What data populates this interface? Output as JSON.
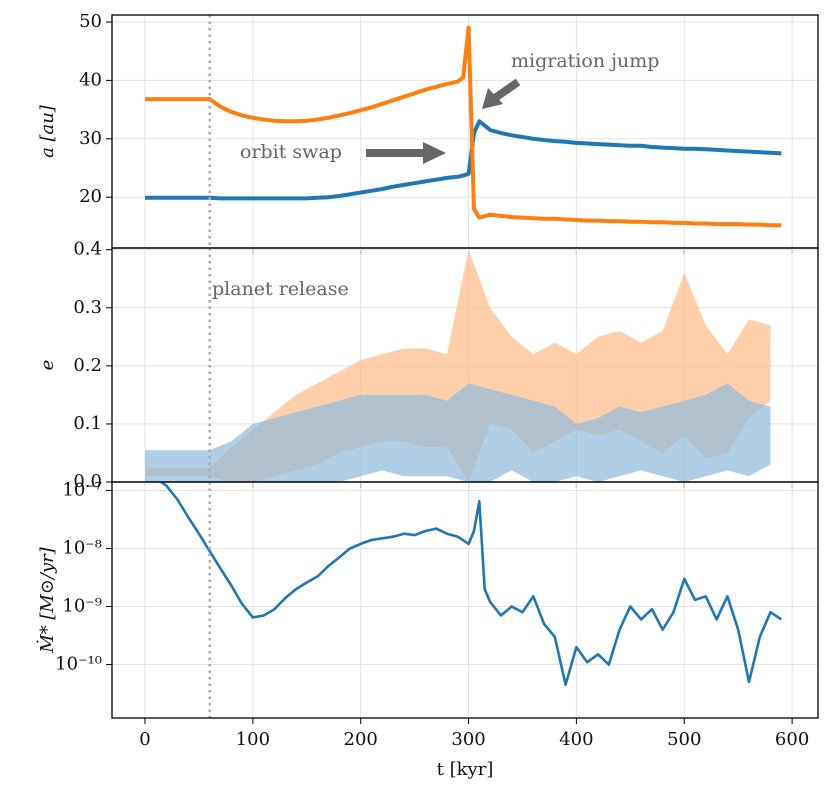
{
  "chart_data": [
    {
      "type": "line",
      "ylabel": "a [au]",
      "xlim": [
        -30.6,
        624
      ],
      "xticks": [
        0,
        100,
        200,
        300,
        400,
        500,
        600
      ],
      "ylim": [
        11.3,
        51.2
      ],
      "yticks": [
        20,
        30,
        40,
        50
      ],
      "grid": true,
      "vline": 60,
      "annotations": [
        "migration jump",
        "orbit swap"
      ],
      "x": [
        0,
        10,
        20,
        30,
        40,
        50,
        60,
        70,
        80,
        90,
        100,
        110,
        120,
        130,
        140,
        150,
        160,
        170,
        180,
        190,
        200,
        210,
        220,
        230,
        240,
        250,
        260,
        270,
        280,
        290,
        295,
        300,
        305,
        310,
        320,
        330,
        340,
        350,
        360,
        370,
        380,
        390,
        400,
        410,
        420,
        430,
        440,
        450,
        460,
        470,
        480,
        490,
        500,
        510,
        520,
        530,
        540,
        550,
        560,
        570,
        580,
        590
      ],
      "series": [
        {
          "color": "#1f77b4",
          "values": [
            19.9,
            19.9,
            19.9,
            19.9,
            19.9,
            19.9,
            19.9,
            19.8,
            19.8,
            19.8,
            19.8,
            19.8,
            19.8,
            19.8,
            19.8,
            19.8,
            19.9,
            20.0,
            20.2,
            20.5,
            20.8,
            21.1,
            21.4,
            21.8,
            22.1,
            22.4,
            22.7,
            23.0,
            23.3,
            23.5,
            23.7,
            24,
            31,
            33,
            31.5,
            31,
            30.6,
            30.3,
            30,
            29.8,
            29.6,
            29.5,
            29.3,
            29.2,
            29.1,
            29,
            28.9,
            28.8,
            28.8,
            28.6,
            28.5,
            28.4,
            28.3,
            28.3,
            28.2,
            28.1,
            28,
            27.9,
            27.8,
            27.7,
            27.6,
            27.5
          ]
        },
        {
          "color": "#ff7f0e",
          "values": [
            36.8,
            36.8,
            36.8,
            36.8,
            36.8,
            36.8,
            36.8,
            35.5,
            34.6,
            34.0,
            33.6,
            33.3,
            33.1,
            33.0,
            33.0,
            33.1,
            33.3,
            33.6,
            34.0,
            34.4,
            34.9,
            35.4,
            36.0,
            36.6,
            37.2,
            37.8,
            38.4,
            38.9,
            39.4,
            39.8,
            40.5,
            49,
            18,
            16.5,
            17,
            16.8,
            16.6,
            16.5,
            16.4,
            16.3,
            16.3,
            16.2,
            16.1,
            16,
            16,
            15.9,
            15.9,
            15.8,
            15.8,
            15.7,
            15.7,
            15.6,
            15.6,
            15.5,
            15.5,
            15.4,
            15.4,
            15.4,
            15.3,
            15.3,
            15.2,
            15.2
          ]
        }
      ]
    },
    {
      "type": "area",
      "ylabel": "e",
      "xlim": [
        -30.6,
        624
      ],
      "xticks": [
        0,
        100,
        200,
        300,
        400,
        500,
        600
      ],
      "ylim": [
        0,
        0.403
      ],
      "yticks": [
        {
          "value": 0,
          "label": "0.0"
        },
        0.1,
        0.2,
        0.3,
        0.4
      ],
      "grid": true,
      "vline": 60,
      "annotations": [
        "planet release"
      ],
      "x": [
        0,
        20,
        40,
        60,
        80,
        100,
        120,
        140,
        160,
        180,
        200,
        220,
        240,
        260,
        280,
        300,
        320,
        340,
        360,
        380,
        400,
        420,
        440,
        460,
        480,
        500,
        520,
        540,
        560,
        580
      ],
      "series": [
        {
          "color": "#ffbb88",
          "lower": [
            0.01,
            0.01,
            0.01,
            0.01,
            0,
            0,
            0.01,
            0.02,
            0.03,
            0.05,
            0.06,
            0.07,
            0.07,
            0.06,
            0.06,
            0,
            0.1,
            0.09,
            0.05,
            0.07,
            0.09,
            0.08,
            0.09,
            0.07,
            0.05,
            0.08,
            0.04,
            0.05,
            0.11,
            0.14
          ],
          "upper": [
            0.025,
            0.025,
            0.025,
            0.025,
            0.06,
            0.09,
            0.12,
            0.15,
            0.17,
            0.19,
            0.21,
            0.22,
            0.23,
            0.23,
            0.22,
            0.4,
            0.3,
            0.25,
            0.22,
            0.24,
            0.22,
            0.25,
            0.26,
            0.24,
            0.26,
            0.36,
            0.27,
            0.22,
            0.28,
            0.27
          ]
        },
        {
          "color": "#8fbadb",
          "lower": [
            0,
            0,
            0,
            0,
            0,
            0,
            0,
            0,
            0,
            0,
            0.01,
            0.02,
            0.01,
            0.01,
            0.01,
            0,
            0,
            0.02,
            0,
            0,
            0.01,
            0,
            0.01,
            0.02,
            0.01,
            0,
            0.01,
            0.02,
            0.01,
            0.03
          ],
          "upper": [
            0.055,
            0.055,
            0.055,
            0.055,
            0.07,
            0.1,
            0.11,
            0.12,
            0.13,
            0.14,
            0.15,
            0.15,
            0.15,
            0.15,
            0.14,
            0.17,
            0.16,
            0.15,
            0.14,
            0.13,
            0.1,
            0.11,
            0.13,
            0.12,
            0.13,
            0.14,
            0.15,
            0.17,
            0.14,
            0.13
          ]
        }
      ]
    },
    {
      "type": "line",
      "ylabel": "Ṁ* [M⊙/yr]",
      "xlabel": "t [kyr]",
      "xlim": [
        -30.6,
        624
      ],
      "xticks": [
        0,
        100,
        200,
        300,
        400,
        500,
        600
      ],
      "yscale": "log",
      "ylim": [
        1.2e-11,
        1.4e-07
      ],
      "yticks": [
        {
          "value": 1e-10,
          "label": "10⁻¹⁰"
        },
        {
          "value": 1e-09,
          "label": "10⁻⁹"
        },
        {
          "value": 1e-08,
          "label": "10⁻⁸"
        },
        {
          "value": 1e-07,
          "label": "10⁻⁷"
        }
      ],
      "grid": true,
      "vline": 60,
      "x": [
        15,
        20,
        30,
        40,
        50,
        60,
        70,
        80,
        90,
        100,
        110,
        120,
        130,
        140,
        150,
        160,
        170,
        180,
        190,
        200,
        210,
        220,
        230,
        240,
        250,
        260,
        270,
        280,
        290,
        300,
        305,
        310,
        315,
        320,
        330,
        340,
        350,
        360,
        370,
        380,
        390,
        400,
        410,
        420,
        430,
        440,
        450,
        460,
        470,
        480,
        490,
        500,
        510,
        520,
        530,
        540,
        550,
        560,
        570,
        580,
        590
      ],
      "series": [
        {
          "color": "#1f77b4",
          "values": [
            1.4e-07,
            1.2e-07,
            7e-08,
            3.5e-08,
            1.8e-08,
            9e-09,
            4.5e-09,
            2.3e-09,
            1.1e-09,
            6.5e-10,
            7e-10,
            9e-10,
            1.4e-09,
            2e-09,
            2.6e-09,
            3.3e-09,
            5e-09,
            7e-09,
            1e-08,
            1.2e-08,
            1.4e-08,
            1.5e-08,
            1.6e-08,
            1.8e-08,
            1.7e-08,
            2e-08,
            2.2e-08,
            1.8e-08,
            1.6e-08,
            1.2e-08,
            2e-08,
            6.5e-08,
            2e-09,
            1.2e-09,
            7e-10,
            1e-09,
            8e-10,
            1.5e-09,
            5e-10,
            3e-10,
            4.5e-11,
            2e-10,
            1.1e-10,
            1.5e-10,
            1e-10,
            4e-10,
            1e-09,
            6e-10,
            9e-10,
            4e-10,
            8e-10,
            3e-09,
            1.3e-09,
            1.5e-09,
            6e-10,
            1.5e-09,
            4e-10,
            5e-11,
            3e-10,
            8e-10,
            6e-10
          ]
        }
      ]
    }
  ]
}
